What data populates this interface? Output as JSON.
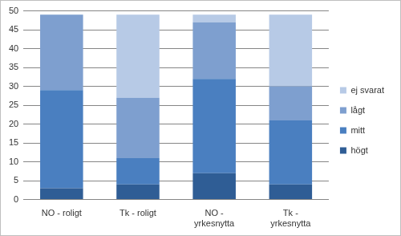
{
  "chart_data": {
    "type": "bar",
    "stacked": true,
    "grid": true,
    "legend": "right",
    "categories": [
      "NO - roligt",
      "Tk - roligt",
      "NO - yrkesnytta",
      "Tk - yrkesnytta"
    ],
    "series": [
      {
        "name": "högt",
        "color": "#2f5d95",
        "values": [
          3,
          4,
          7,
          4
        ]
      },
      {
        "name": "mitt",
        "color": "#4a7fc0",
        "values": [
          26,
          7,
          25,
          17
        ]
      },
      {
        "name": "lågt",
        "color": "#7e9fcf",
        "values": [
          20,
          16,
          15,
          9
        ]
      },
      {
        "name": "ej svarat",
        "color": "#b7cae6",
        "values": [
          0,
          22,
          2,
          19
        ]
      }
    ],
    "ylim": [
      0,
      50
    ],
    "yticks": [
      0,
      5,
      10,
      15,
      20,
      25,
      30,
      35,
      40,
      45,
      50
    ]
  }
}
